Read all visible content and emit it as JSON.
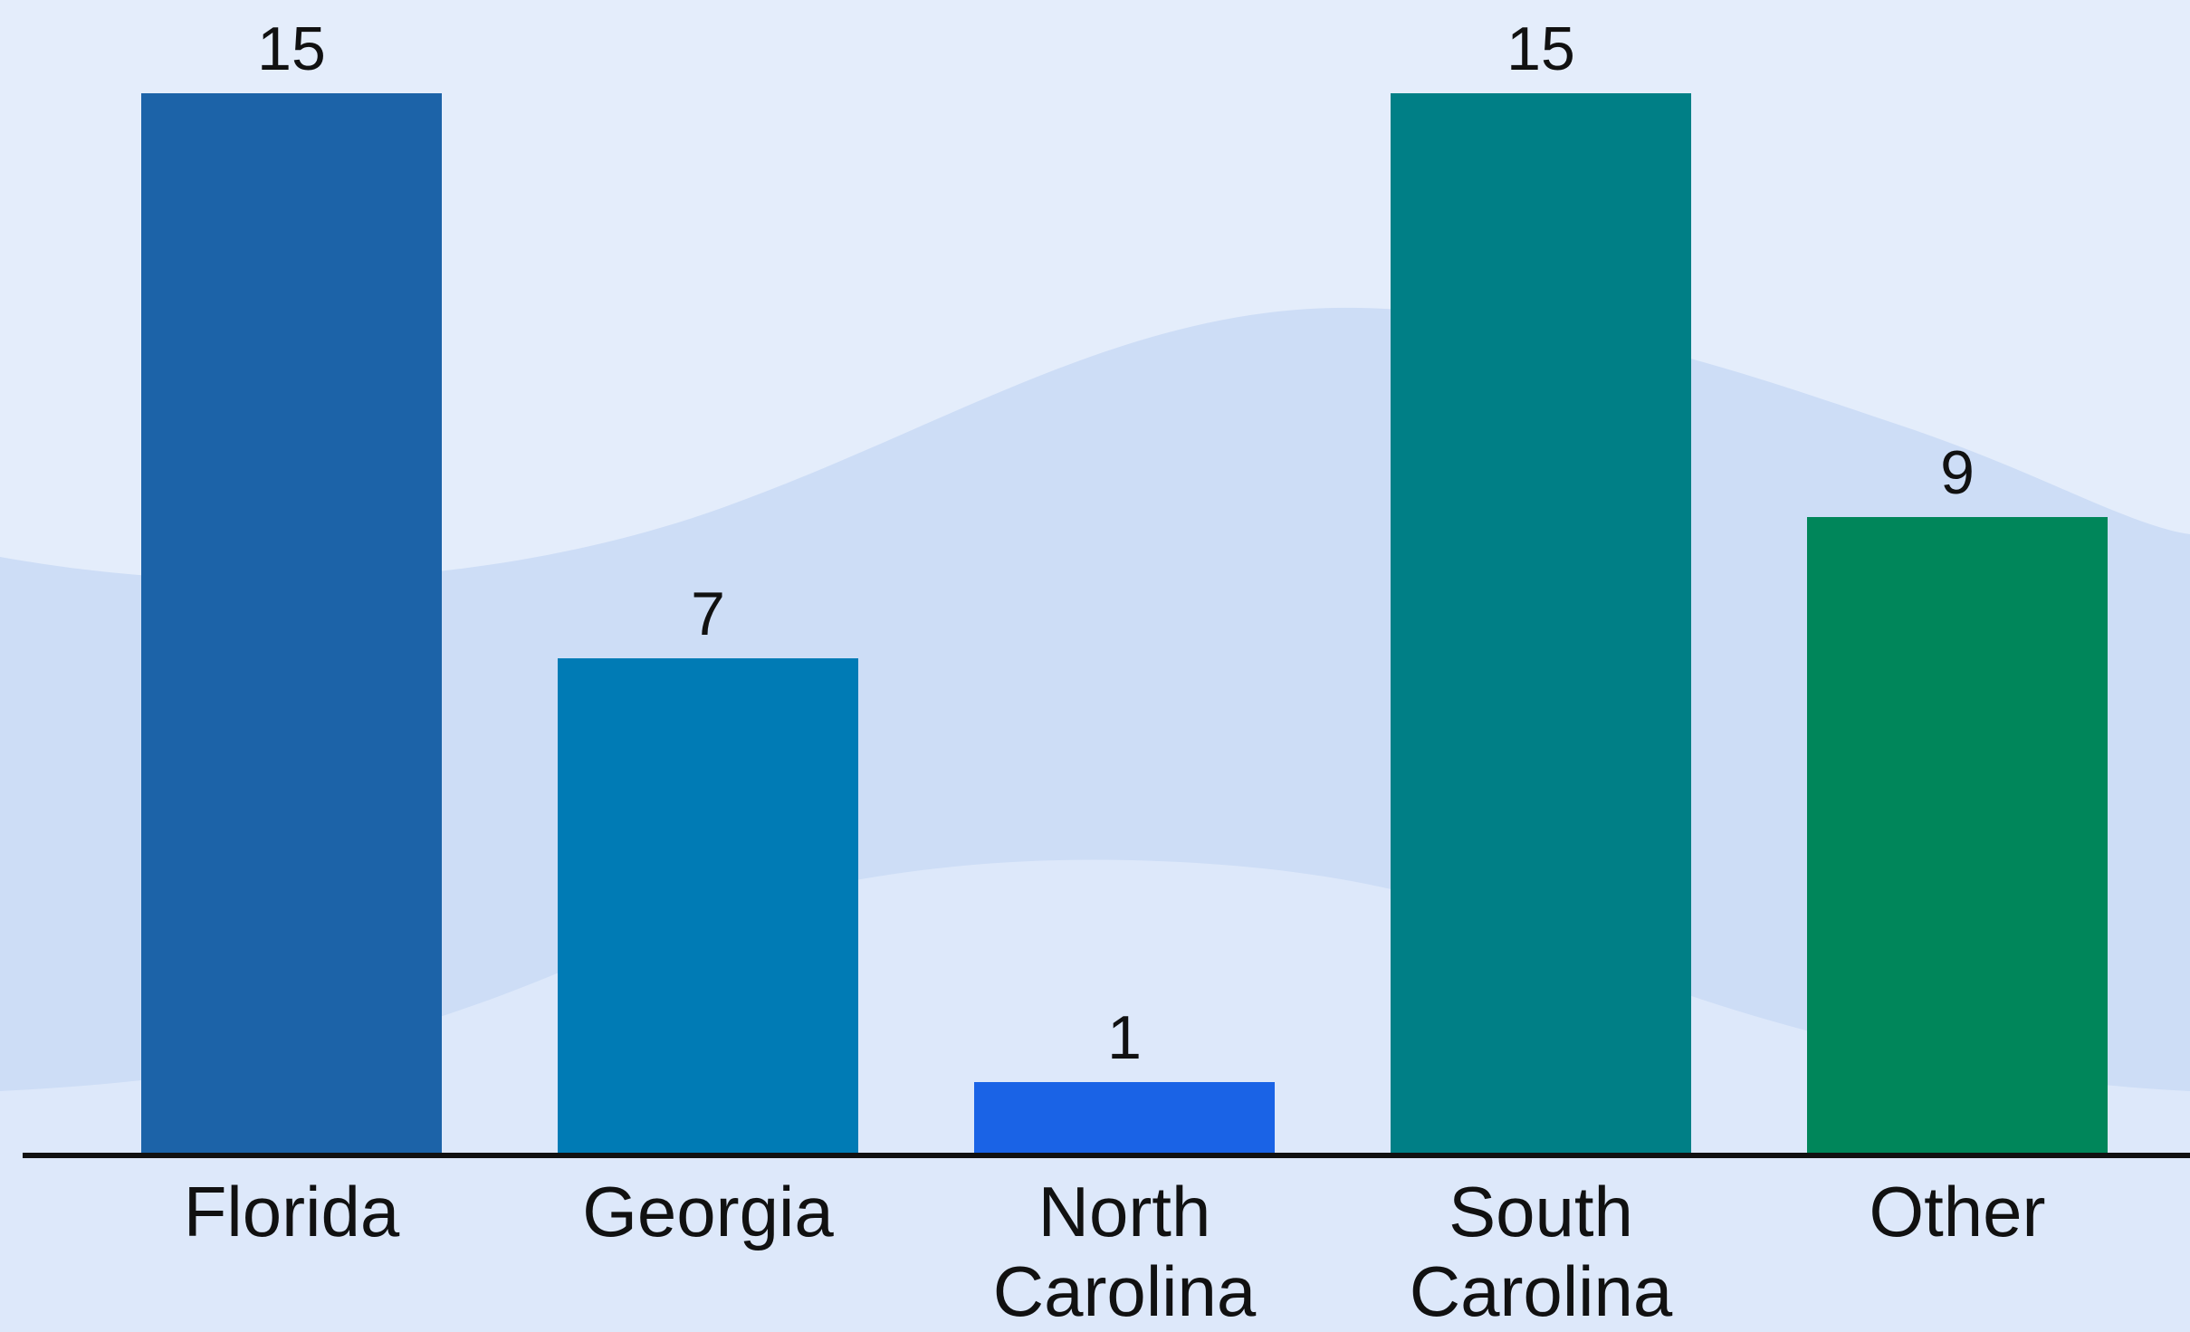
{
  "chart_data": {
    "type": "bar",
    "title": "",
    "xlabel": "",
    "ylabel": "",
    "categories": [
      "Florida",
      "Georgia",
      "North Carolina",
      "South Carolina",
      "Other"
    ],
    "category_lines": [
      [
        "Florida"
      ],
      [
        "Georgia"
      ],
      [
        "North",
        "Carolina"
      ],
      [
        "South",
        "Carolina"
      ],
      [
        "Other"
      ]
    ],
    "values": [
      15,
      7,
      1,
      15,
      9
    ],
    "data_labels": [
      "15",
      "7",
      "1",
      "15",
      "9"
    ],
    "bar_colors": [
      "#1c63a8",
      "#007bb5",
      "#1a63e6",
      "#007f86",
      "#00865a"
    ],
    "ylim": [
      0,
      15
    ],
    "grid": false,
    "legend": "none"
  },
  "colors": {
    "background": "#e4edfb",
    "wave_dark": "#cdddf6",
    "wave_light": "#dde8fa",
    "axis": "#111111",
    "text": "#111111"
  }
}
